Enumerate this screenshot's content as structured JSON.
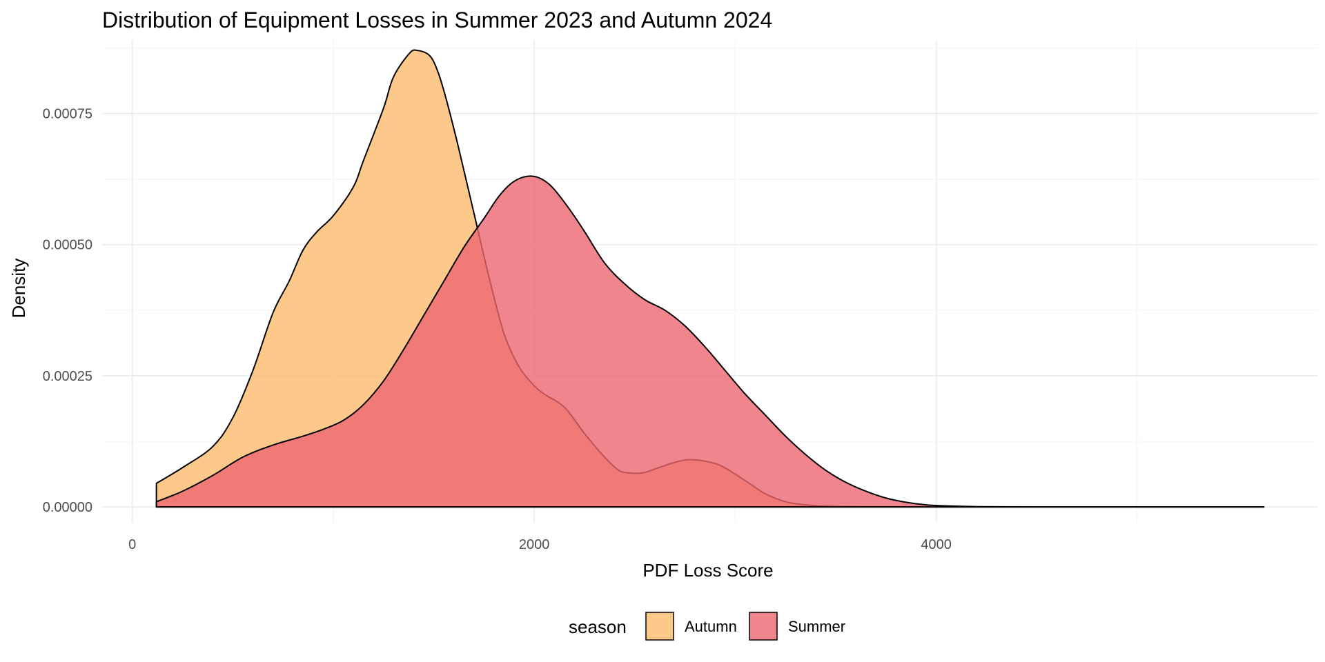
{
  "chart_data": {
    "type": "area",
    "title": "Distribution of Equipment Losses in Summer 2023 and Autumn 2024",
    "xlabel": "PDF Loss Score",
    "ylabel": "Density",
    "xlim": [
      -150,
      5900
    ],
    "ylim": [
      -3e-05,
      0.00089
    ],
    "x_ticks": [
      0,
      2000,
      4000
    ],
    "x_tick_labels": [
      "0",
      "2000",
      "4000"
    ],
    "x_minor_ticks": [
      1000,
      3000,
      5000
    ],
    "y_ticks": [
      0,
      0.00025,
      0.0005,
      0.00075
    ],
    "y_tick_labels": [
      "0.00000",
      "0.00025",
      "0.00050",
      "0.00075"
    ],
    "y_minor_ticks": [
      0.000125,
      0.000375,
      0.000625,
      0.000875
    ],
    "grid": true,
    "legend": {
      "title": "season",
      "position": "bottom",
      "entries": [
        "Autumn",
        "Summer"
      ]
    },
    "series": [
      {
        "name": "Autumn",
        "color": "#FDBB6E",
        "x": [
          120,
          250,
          400,
          500,
          600,
          700,
          780,
          850,
          920,
          1000,
          1100,
          1150,
          1250,
          1300,
          1380,
          1420,
          1480,
          1520,
          1560,
          1620,
          1700,
          1780,
          1850,
          1920,
          1990,
          2050,
          2150,
          2250,
          2350,
          2420,
          2470,
          2540,
          2620,
          2700,
          2760,
          2840,
          2920,
          2990,
          3070,
          3150,
          3250,
          3350,
          3500,
          3700,
          3900,
          4100,
          4300,
          4600,
          5000,
          5400,
          5630
        ],
        "y": [
          4.5e-05,
          7.5e-05,
          0.000115,
          0.00017,
          0.00026,
          0.00037,
          0.00043,
          0.00049,
          0.000525,
          0.000555,
          0.00061,
          0.00066,
          0.00076,
          0.00082,
          0.000865,
          0.00087,
          0.00086,
          0.00083,
          0.00078,
          0.00069,
          0.00056,
          0.00043,
          0.00033,
          0.00027,
          0.000235,
          0.000215,
          0.00019,
          0.00014,
          9.5e-05,
          7e-05,
          6.5e-05,
          6.5e-05,
          7.5e-05,
          8.5e-05,
          9e-05,
          8.8e-05,
          8e-05,
          6.5e-05,
          4.5e-05,
          2.5e-05,
          1e-05,
          4e-06,
          1e-06,
          5e-07,
          2e-07,
          1e-07,
          1e-07,
          1e-07,
          1e-07,
          1e-07,
          1e-07
        ]
      },
      {
        "name": "Summer",
        "color": "#EE6670",
        "x": [
          120,
          250,
          400,
          550,
          700,
          850,
          950,
          1050,
          1150,
          1250,
          1350,
          1450,
          1550,
          1650,
          1750,
          1820,
          1880,
          1940,
          2000,
          2050,
          2100,
          2180,
          2250,
          2350,
          2450,
          2550,
          2650,
          2750,
          2850,
          2950,
          3050,
          3150,
          3250,
          3350,
          3450,
          3550,
          3650,
          3750,
          3850,
          3950,
          4050,
          4200,
          4400,
          4700,
          5000,
          5300,
          5630
        ],
        "y": [
          1e-05,
          3e-05,
          6e-05,
          9.5e-05,
          0.000118,
          0.000135,
          0.000148,
          0.000165,
          0.000195,
          0.00024,
          0.0003,
          0.000365,
          0.00043,
          0.000495,
          0.00055,
          0.00059,
          0.000615,
          0.000628,
          0.00063,
          0.000622,
          0.000605,
          0.000565,
          0.000525,
          0.000465,
          0.000425,
          0.000395,
          0.000375,
          0.000345,
          0.000305,
          0.00026,
          0.000215,
          0.000175,
          0.000135,
          0.0001,
          7e-05,
          4.7e-05,
          3e-05,
          1.7e-05,
          9e-06,
          4e-06,
          2e-06,
          6e-07,
          2e-07,
          1e-07,
          1e-07,
          1e-07,
          1e-07
        ]
      }
    ]
  }
}
